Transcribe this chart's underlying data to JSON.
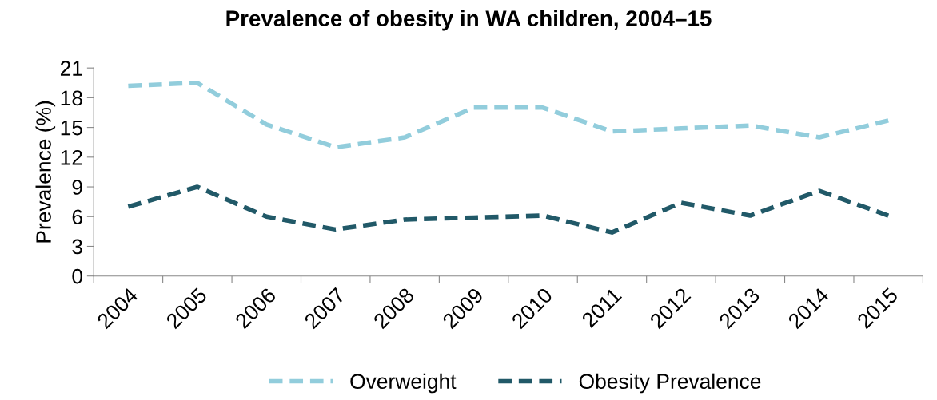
{
  "chart_data": {
    "type": "line",
    "title": "Prevalence of obesity in WA children, 2004–15",
    "ylabel": "Prevalence (%)",
    "categories": [
      "2004",
      "2005",
      "2006",
      "2007",
      "2008",
      "2009",
      "2010",
      "2011",
      "2012",
      "2013",
      "2014",
      "2015"
    ],
    "series": [
      {
        "name": "Overweight",
        "color": "#92cddc",
        "values": [
          19.2,
          19.5,
          15.3,
          13.0,
          14.0,
          17.0,
          17.0,
          14.6,
          14.9,
          15.2,
          14.0,
          15.7
        ]
      },
      {
        "name": "Obesity Prevalence",
        "color": "#215968",
        "values": [
          7.0,
          9.0,
          6.0,
          4.7,
          5.7,
          5.9,
          6.1,
          4.4,
          7.4,
          6.1,
          8.6,
          6.1
        ]
      }
    ],
    "ylim": [
      0,
      21
    ],
    "yticks": [
      0,
      3,
      6,
      9,
      12,
      15,
      18,
      21
    ],
    "grid": false,
    "legend": "bottom",
    "line_style": "dashed",
    "marker": "none"
  }
}
